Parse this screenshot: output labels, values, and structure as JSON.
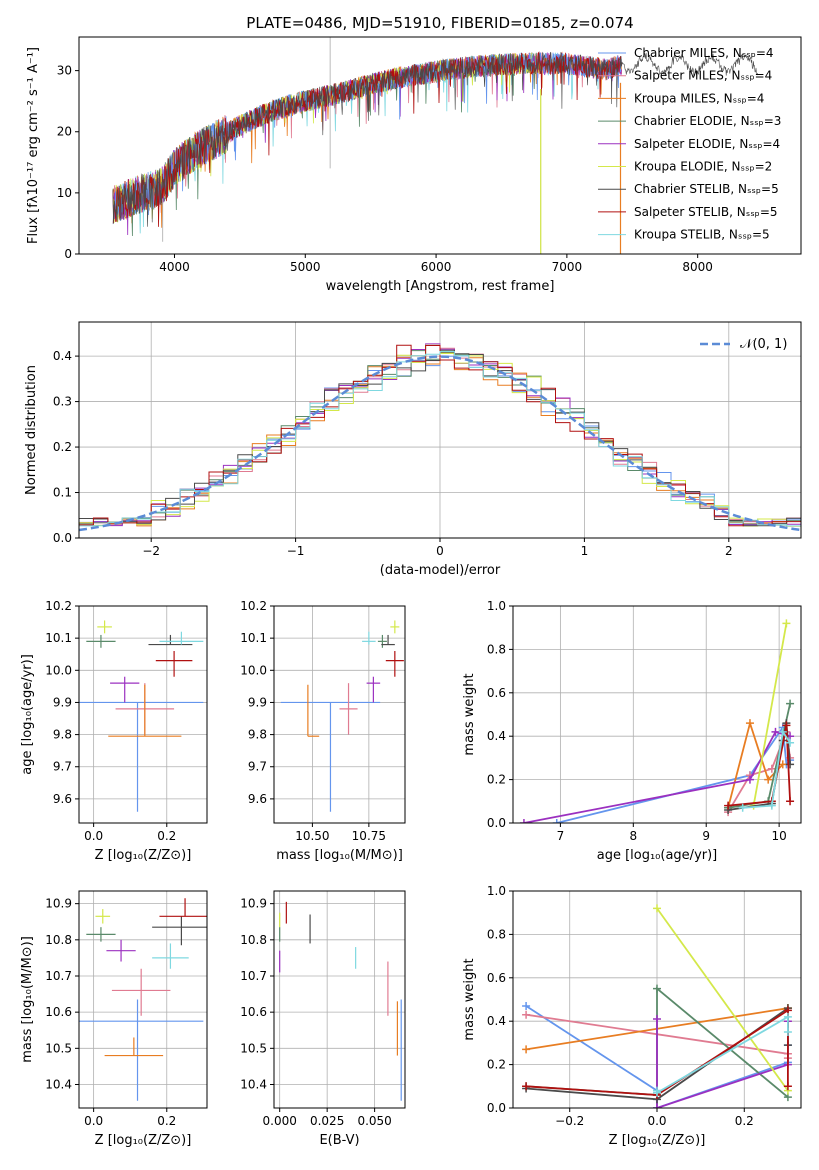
{
  "title": "PLATE=0486, MJD=51910, FIBERID=0185, z=0.074",
  "colors": [
    "#6495ed",
    "#e07b91",
    "#e87d22",
    "#5a8a6a",
    "#9b30c0",
    "#d4e84a",
    "#4a4a4a",
    "#b01010",
    "#7fd8e0"
  ],
  "chart_data": [
    {
      "id": "spectrum",
      "type": "line",
      "xlabel": "wavelength [Angstrom, rest frame]",
      "ylabel": "Flux [fλ10⁻¹⁷ erg cm⁻² s⁻¹ A⁻¹]",
      "xlim": [
        3270,
        8790
      ],
      "ylim": [
        0,
        35.5
      ],
      "xticks": [
        4000,
        5000,
        6000,
        7000,
        8000
      ],
      "yticks": [
        0,
        10,
        20,
        30
      ],
      "grid": false,
      "legend_position": "top-right",
      "series": [
        {
          "name": "Chabrier MILES, Nₛₛₚ=4"
        },
        {
          "name": "Salpeter MILES, Nₛₛₚ=4"
        },
        {
          "name": "Kroupa MILES, Nₛₛₚ=4"
        },
        {
          "name": "Chabrier ELODIE, Nₛₛₚ=3"
        },
        {
          "name": "Salpeter ELODIE, Nₛₛₚ=4"
        },
        {
          "name": "Kroupa ELODIE, Nₛₛₚ=2"
        },
        {
          "name": "Chabrier STELIB, Nₛₛₚ=5"
        },
        {
          "name": "Salpeter STELIB, Nₛₛₚ=5"
        },
        {
          "name": "Kroupa STELIB, Nₛₛₚ=5"
        }
      ],
      "continuum": {
        "x": [
          3520,
          3700,
          3900,
          4000,
          4100,
          4300,
          4500,
          4700,
          4900,
          5100,
          5300,
          5500,
          5700,
          5900,
          6100,
          6300,
          6500,
          6700,
          6900,
          7000,
          7100,
          7200,
          7300,
          7350,
          7420
        ],
        "y": [
          8,
          9.5,
          11,
          14,
          16,
          18.5,
          21,
          23,
          24.5,
          25.5,
          26.5,
          27.8,
          28.8,
          29.5,
          30.2,
          30.7,
          31,
          31.2,
          31.2,
          31.1,
          30.8,
          30.5,
          30.2,
          30.5,
          31
        ]
      },
      "gaps": [
        {
          "x": 5190,
          "y": [
            14,
            35.5
          ]
        },
        {
          "x": 6800,
          "y": [
            0,
            27
          ]
        },
        {
          "x": 7410,
          "y": [
            0,
            28
          ]
        },
        {
          "x": 3910,
          "y": [
            2,
            9
          ]
        }
      ]
    },
    {
      "id": "residuals",
      "type": "line",
      "xlabel": "(data-model)/error",
      "ylabel": "Normed distribution",
      "xlim": [
        -2.5,
        2.5
      ],
      "ylim": [
        0,
        0.475
      ],
      "xticks": [
        -2,
        -1,
        0,
        1,
        2
      ],
      "yticks": [
        0.0,
        0.1,
        0.2,
        0.3,
        0.4
      ],
      "grid": true,
      "legend": [
        "𝒩(0, 1)"
      ],
      "legend_position": "top-right",
      "bin_width": 0.1,
      "bin_start": -2.5
    },
    {
      "id": "age-vs-Z",
      "type": "scatter",
      "xlabel": "Z [log₁₀(Z/Z⊙)]",
      "ylabel": "age  [log₁₀(age/yr)]",
      "xlim": [
        -0.04,
        0.31
      ],
      "ylim": [
        9.525,
        10.2
      ],
      "xticks": [
        "0.0",
        "0.2"
      ],
      "yticks": [
        "9.6",
        "9.7",
        "9.8",
        "9.9",
        "10.0",
        "10.1",
        "10.2"
      ],
      "grid": true,
      "points": [
        {
          "x": 0.12,
          "xerr": 0.18,
          "y": 9.9,
          "yerr": [
            0.34,
            0.0
          ]
        },
        {
          "x": 0.14,
          "xerr": 0.08,
          "y": 9.88,
          "yerr": [
            0.08,
            0.08
          ]
        },
        {
          "x": 0.14,
          "xerr": 0.1,
          "y": 9.795,
          "yerr": [
            0.0,
            0.16
          ]
        },
        {
          "x": 0.02,
          "xerr": 0.04,
          "y": 10.09,
          "yerr": [
            0.02,
            0.02
          ]
        },
        {
          "x": 0.085,
          "xerr": 0.04,
          "y": 9.96,
          "yerr": [
            0.06,
            0.02
          ]
        },
        {
          "x": 0.03,
          "xerr": 0.02,
          "y": 10.135,
          "yerr": [
            0.02,
            0.02
          ]
        },
        {
          "x": 0.21,
          "xerr": 0.06,
          "y": 10.08,
          "yerr": [
            0.0,
            0.03
          ]
        },
        {
          "x": 0.22,
          "xerr": 0.05,
          "y": 10.03,
          "yerr": [
            0.05,
            0.03
          ]
        },
        {
          "x": 0.24,
          "xerr": 0.06,
          "y": 10.09,
          "yerr": [
            0.01,
            0.03
          ]
        }
      ]
    },
    {
      "id": "age-vs-mass",
      "type": "scatter",
      "xlabel": "mass [log₁₀(M/M⊙)]",
      "xlim": [
        10.33,
        10.91
      ],
      "ylim": [
        9.525,
        10.2
      ],
      "xticks": [
        "10.50",
        "10.75"
      ],
      "yticks": [
        "9.6",
        "9.7",
        "9.8",
        "9.9",
        "10.0",
        "10.1",
        "10.2"
      ],
      "grid": true,
      "points": [
        {
          "x": 10.58,
          "xerr": 0.22,
          "y": 9.9,
          "yerr": [
            0.34,
            0.0
          ]
        },
        {
          "x": 10.66,
          "xerr": 0.04,
          "y": 9.88,
          "yerr": [
            0.08,
            0.08
          ]
        },
        {
          "x": 10.48,
          "xerr": 0.0,
          "y": 9.795,
          "yerr": [
            0.0,
            0.16
          ],
          "xl": 0.0,
          "xr": 0.05
        },
        {
          "x": 10.81,
          "xerr": 0.02,
          "y": 10.09,
          "yerr": [
            0.02,
            0.02
          ]
        },
        {
          "x": 10.77,
          "xerr": 0.03,
          "y": 9.96,
          "yerr": [
            0.06,
            0.02
          ]
        },
        {
          "x": 10.865,
          "xerr": 0.02,
          "y": 10.135,
          "yerr": [
            0.02,
            0.02
          ]
        },
        {
          "x": 10.835,
          "xerr": 0.03,
          "y": 10.08,
          "yerr": [
            0.0,
            0.03
          ]
        },
        {
          "x": 10.865,
          "xerr": 0.04,
          "y": 10.03,
          "yerr": [
            0.05,
            0.03
          ]
        },
        {
          "x": 10.75,
          "xerr": 0.03,
          "y": 10.09,
          "yerr": [
            0.01,
            0.03
          ]
        }
      ]
    },
    {
      "id": "weight-vs-age",
      "type": "line",
      "xlabel": "age  [log₁₀(age/yr)]",
      "ylabel": "mass weight",
      "xlim": [
        6.35,
        10.3
      ],
      "ylim": [
        0,
        1.0
      ],
      "xticks": [
        "7",
        "8",
        "9",
        "10"
      ],
      "yticks": [
        "0.0",
        "0.2",
        "0.4",
        "0.6",
        "0.8",
        "1.0"
      ],
      "grid": true,
      "series": [
        {
          "x": [
            6.95,
            9.6,
            10.05,
            10.1,
            10.15
          ],
          "y": [
            0,
            0.22,
            0.44,
            0.27,
            0.29
          ]
        },
        {
          "x": [
            9.3,
            9.6,
            9.9,
            10.1,
            10.15
          ],
          "y": [
            0.05,
            0.22,
            0.25,
            0.42,
            0.3
          ]
        },
        {
          "x": [
            9.3,
            9.6,
            9.85,
            10.05
          ],
          "y": [
            0.07,
            0.46,
            0.2,
            0.27
          ]
        },
        {
          "x": [
            9.3,
            9.85,
            10.15
          ],
          "y": [
            0.07,
            0.1,
            0.55
          ]
        },
        {
          "x": [
            6.5,
            9.6,
            9.95,
            10.15
          ],
          "y": [
            0,
            0.2,
            0.42,
            0.4
          ]
        },
        {
          "x": [
            9.65,
            10.1
          ],
          "y": [
            0.08,
            0.92
          ]
        },
        {
          "x": [
            9.3,
            9.9,
            10.05,
            10.1,
            10.15
          ],
          "y": [
            0.06,
            0.09,
            0.38,
            0.46,
            0.27
          ]
        },
        {
          "x": [
            9.3,
            9.9,
            10.1,
            10.15
          ],
          "y": [
            0.08,
            0.1,
            0.45,
            0.1
          ]
        },
        {
          "x": [
            9.5,
            9.9,
            10.05,
            10.15
          ],
          "y": [
            0.07,
            0.08,
            0.42,
            0.37
          ]
        }
      ]
    },
    {
      "id": "mass-vs-Z",
      "type": "scatter",
      "xlabel": "Z [log₁₀(Z/Z⊙)]",
      "ylabel": "mass [log₁₀(M/M⊙)]",
      "xlim": [
        -0.04,
        0.31
      ],
      "ylim": [
        10.335,
        10.935
      ],
      "xticks": [
        "0.0",
        "0.2"
      ],
      "yticks": [
        "10.4",
        "10.5",
        "10.6",
        "10.7",
        "10.8",
        "10.9"
      ],
      "grid": true,
      "points": [
        {
          "x": 0.12,
          "xerr": 0.18,
          "y": 10.575,
          "yerr": [
            0.22,
            0.06
          ]
        },
        {
          "x": 0.13,
          "xerr": 0.08,
          "y": 10.66,
          "yerr": [
            0.07,
            0.06
          ]
        },
        {
          "x": 0.11,
          "xerr": 0.08,
          "y": 10.48,
          "yerr": [
            0.0,
            0.05
          ]
        },
        {
          "x": 0.02,
          "xerr": 0.04,
          "y": 10.815,
          "yerr": [
            0.02,
            0.02
          ]
        },
        {
          "x": 0.075,
          "xerr": 0.04,
          "y": 10.77,
          "yerr": [
            0.03,
            0.03
          ]
        },
        {
          "x": 0.025,
          "xerr": 0.02,
          "y": 10.865,
          "yerr": [
            0.02,
            0.02
          ]
        },
        {
          "x": 0.24,
          "xerr": 0.08,
          "y": 10.835,
          "yerr": [
            0.05,
            0.03
          ]
        },
        {
          "x": 0.25,
          "xerr": 0.07,
          "y": 10.865,
          "yerr": [
            0.0,
            0.05
          ]
        },
        {
          "x": 0.21,
          "xerr": 0.05,
          "y": 10.75,
          "yerr": [
            0.03,
            0.04
          ]
        }
      ]
    },
    {
      "id": "mass-vs-ebv",
      "type": "scatter",
      "xlabel": "E(B-V)",
      "xlim": [
        -0.003,
        0.066
      ],
      "ylim": [
        10.335,
        10.935
      ],
      "xticks": [
        "0.000",
        "0.025",
        "0.050"
      ],
      "yticks": [
        "10.4",
        "10.5",
        "10.6",
        "10.7",
        "10.8",
        "10.9"
      ],
      "grid": true,
      "points": [
        {
          "x": 0.064,
          "xerr": 0,
          "y": 10.575,
          "yerr": [
            0.22,
            0.06
          ]
        },
        {
          "x": 0.057,
          "xerr": 0,
          "y": 10.66,
          "yerr": [
            0.07,
            0.08
          ]
        },
        {
          "x": 0.062,
          "xerr": 0,
          "y": 10.48,
          "yerr": [
            0.0,
            0.15
          ]
        },
        {
          "x": 0.0,
          "xerr": 0,
          "y": 10.815,
          "yerr": [
            0.02,
            0.02
          ]
        },
        {
          "x": 0.0,
          "xerr": 0,
          "y": 10.73,
          "yerr": [
            0.02,
            0.04
          ]
        },
        {
          "x": 0.0,
          "xerr": 0,
          "y": 10.865,
          "yerr": [
            0.03,
            0.01
          ]
        },
        {
          "x": 0.016,
          "xerr": 0,
          "y": 10.82,
          "yerr": [
            0.03,
            0.05
          ]
        },
        {
          "x": 0.0035,
          "xerr": 0,
          "y": 10.875,
          "yerr": [
            0.03,
            0.03
          ]
        },
        {
          "x": 0.04,
          "xerr": 0,
          "y": 10.75,
          "yerr": [
            0.03,
            0.03
          ]
        }
      ]
    },
    {
      "id": "weight-vs-Z",
      "type": "line",
      "xlabel": "Z [log₁₀(Z/Z⊙)]",
      "ylabel": "mass weight",
      "xlim": [
        -0.33,
        0.33
      ],
      "ylim": [
        0,
        1.0
      ],
      "xticks": [
        "−0.2",
        "0.0",
        "0.2"
      ],
      "yticks": [
        "0.0",
        "0.2",
        "0.4",
        "0.6",
        "0.8",
        "1.0"
      ],
      "grid": true,
      "series": [
        {
          "x": [
            -0.3,
            0.0,
            0.0,
            0.3,
            0.3
          ],
          "y": [
            0.47,
            0.08,
            0.0,
            0.21,
            0.29
          ]
        },
        {
          "x": [
            -0.3,
            0.3,
            0.3
          ],
          "y": [
            0.43,
            0.25,
            0.23
          ]
        },
        {
          "x": [
            -0.3,
            0.3,
            0.3
          ],
          "y": [
            0.27,
            0.46,
            0.46
          ]
        },
        {
          "x": [
            -0.3,
            0.0,
            0.0,
            0.3
          ],
          "y": [
            0.1,
            0.06,
            0.55,
            0.05
          ]
        },
        {
          "x": [
            0.0,
            0.0,
            0.3,
            0.3
          ],
          "y": [
            0.41,
            0.0,
            0.2,
            0.4
          ]
        },
        {
          "x": [
            0.0,
            0.3
          ],
          "y": [
            0.92,
            0.08
          ]
        },
        {
          "x": [
            -0.3,
            0.0,
            0.3,
            0.3
          ],
          "y": [
            0.09,
            0.04,
            0.46,
            0.29
          ]
        },
        {
          "x": [
            -0.3,
            0.0,
            0.3,
            0.3
          ],
          "y": [
            0.1,
            0.06,
            0.45,
            0.1
          ]
        },
        {
          "x": [
            0.0,
            0.0,
            0.3,
            0.3
          ],
          "y": [
            0.08,
            0.07,
            0.42,
            0.35
          ]
        }
      ]
    }
  ]
}
